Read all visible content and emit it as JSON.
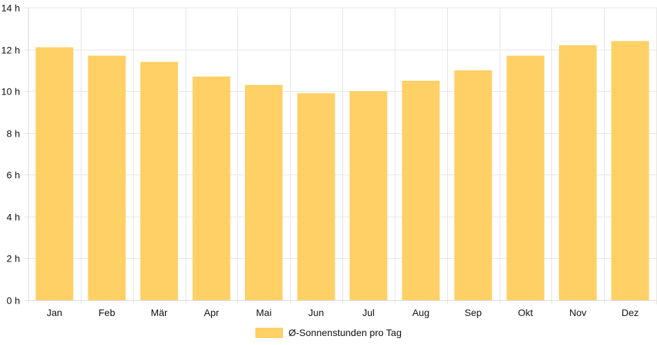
{
  "chart_data": {
    "type": "bar",
    "categories": [
      "Jan",
      "Feb",
      "Mär",
      "Apr",
      "Mai",
      "Jun",
      "Jul",
      "Aug",
      "Sep",
      "Okt",
      "Nov",
      "Dez"
    ],
    "series": [
      {
        "name": "Ø-Sonnenstunden pro Tag",
        "values": [
          12.1,
          11.7,
          11.4,
          10.7,
          10.3,
          9.9,
          10.0,
          10.5,
          11.0,
          11.7,
          12.2,
          12.4
        ],
        "color": "#FED066"
      }
    ],
    "ylim": [
      0,
      14
    ],
    "yticks": [
      0,
      2,
      4,
      6,
      8,
      10,
      12,
      14
    ],
    "y_tick_suffix": " h",
    "grid": true,
    "legend_position": "bottom"
  }
}
